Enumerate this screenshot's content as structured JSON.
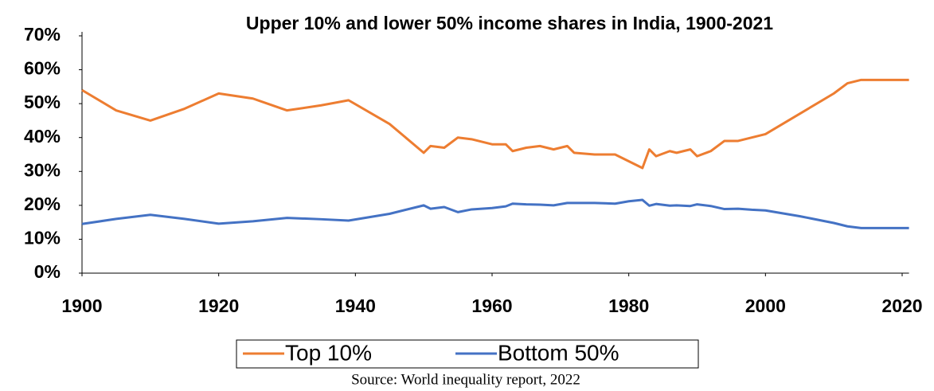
{
  "chart_data": {
    "type": "line",
    "title": "Upper 10% and lower 50% income shares in India, 1900-2021",
    "source": "Source: World inequality report, 2022",
    "x": [
      1900,
      1905,
      1910,
      1915,
      1920,
      1925,
      1930,
      1935,
      1939,
      1945,
      1950,
      1951,
      1953,
      1955,
      1957,
      1960,
      1962,
      1963,
      1965,
      1967,
      1969,
      1971,
      1972,
      1975,
      1978,
      1980,
      1982,
      1983,
      1984,
      1986,
      1987,
      1989,
      1990,
      1992,
      1994,
      1996,
      1998,
      2000,
      2005,
      2010,
      2012,
      2014,
      2021
    ],
    "series": [
      {
        "name": "Top 10%",
        "color": "#ed7d31",
        "values": [
          54,
          48,
          45,
          48.5,
          53,
          51.5,
          48,
          49.5,
          51,
          44,
          35.5,
          37.5,
          37,
          40,
          39.5,
          38,
          38,
          36,
          37,
          37.5,
          36.5,
          37.5,
          35.5,
          35,
          35,
          33,
          31,
          36.5,
          34.5,
          36,
          35.5,
          36.5,
          34.5,
          36,
          39,
          39,
          40,
          41,
          47,
          53,
          56,
          57,
          57
        ]
      },
      {
        "name": "Bottom 50%",
        "color": "#4472c4",
        "values": [
          14.5,
          16,
          17.2,
          16,
          14.6,
          15.3,
          16.3,
          15.9,
          15.5,
          17.5,
          20,
          19,
          19.5,
          18,
          18.8,
          19.2,
          19.7,
          20.5,
          20.3,
          20.2,
          20,
          20.7,
          20.7,
          20.7,
          20.5,
          21.2,
          21.6,
          19.9,
          20.4,
          19.9,
          20,
          19.8,
          20.3,
          19.8,
          18.9,
          19,
          18.7,
          18.5,
          16.8,
          14.8,
          13.8,
          13.3,
          13.3
        ]
      }
    ],
    "xlim": [
      1900,
      2021
    ],
    "xticks": [
      1900,
      1920,
      1940,
      1960,
      1980,
      2000,
      2020
    ],
    "ylim": [
      0,
      70
    ],
    "yticks": [
      {
        "value": 0,
        "label": "0%"
      },
      {
        "value": 10,
        "label": "10%"
      },
      {
        "value": 20,
        "label": "20%"
      },
      {
        "value": 30,
        "label": "30%"
      },
      {
        "value": 40,
        "label": "40%"
      },
      {
        "value": 50,
        "label": "50%"
      },
      {
        "value": 60,
        "label": "60%"
      },
      {
        "value": 70,
        "label": "70%"
      }
    ],
    "legend": "bottom"
  }
}
